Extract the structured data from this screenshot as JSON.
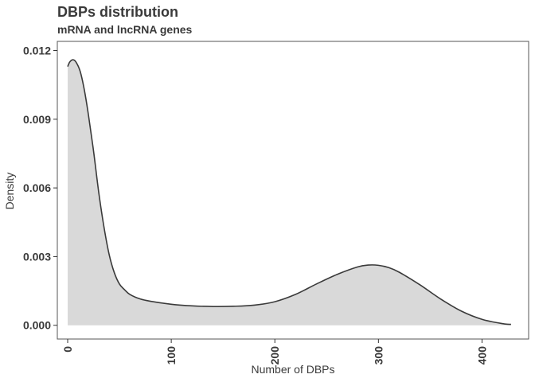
{
  "chart_data": {
    "type": "area",
    "title": "DBPs distribution",
    "subtitle": "mRNA and lncRNA genes",
    "xlabel": "Number of DBPs",
    "ylabel": "Density",
    "xlim": [
      -10,
      445
    ],
    "ylim": [
      -0.0006,
      0.0124
    ],
    "x_ticks": [
      0,
      100,
      200,
      300,
      400
    ],
    "x_tick_labels": [
      "0",
      "100",
      "200",
      "300",
      "400"
    ],
    "y_ticks": [
      0.0,
      0.003,
      0.006,
      0.009,
      0.012
    ],
    "y_tick_labels": [
      "0.000",
      "0.003",
      "0.006",
      "0.009",
      "0.012"
    ],
    "grid": false,
    "series": [
      {
        "x": [
          0,
          2,
          5,
          8,
          12,
          16,
          20,
          25,
          30,
          35,
          40,
          45,
          50,
          55,
          60,
          70,
          80,
          100,
          120,
          140,
          160,
          180,
          200,
          220,
          240,
          260,
          280,
          290,
          300,
          310,
          320,
          340,
          360,
          380,
          400,
          420,
          428
        ],
        "y": [
          0.0113,
          0.0115,
          0.0116,
          0.0115,
          0.0111,
          0.0103,
          0.0092,
          0.0076,
          0.0058,
          0.0043,
          0.0031,
          0.0023,
          0.0018,
          0.00155,
          0.00135,
          0.00115,
          0.00105,
          0.00092,
          0.00085,
          0.00082,
          0.00083,
          0.00088,
          0.00103,
          0.00135,
          0.0018,
          0.00222,
          0.00255,
          0.00263,
          0.00262,
          0.00252,
          0.00232,
          0.00177,
          0.00115,
          0.00062,
          0.00026,
          7e-05,
          4e-05
        ]
      }
    ],
    "colors": {
      "fill": "#d9d9d9",
      "line": "#3a3a3a",
      "panel_border": "#555555"
    }
  }
}
